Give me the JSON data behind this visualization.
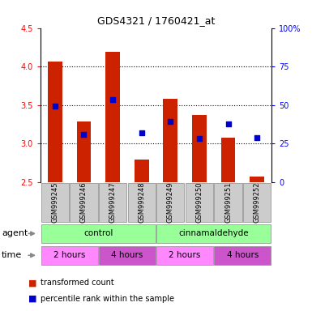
{
  "title": "GDS4321 / 1760421_at",
  "samples": [
    "GSM999245",
    "GSM999246",
    "GSM999247",
    "GSM999248",
    "GSM999249",
    "GSM999250",
    "GSM999251",
    "GSM999252"
  ],
  "bar_tops": [
    4.06,
    3.29,
    4.19,
    2.79,
    3.58,
    3.37,
    3.08,
    2.57
  ],
  "bar_bottom": 2.5,
  "blue_dots": [
    3.49,
    3.12,
    3.57,
    3.14,
    3.29,
    3.06,
    3.25,
    3.07
  ],
  "ylim": [
    2.5,
    4.5
  ],
  "yticks_left": [
    2.5,
    3.0,
    3.5,
    4.0,
    4.5
  ],
  "yticks_right": [
    0,
    25,
    50,
    75,
    100
  ],
  "yticks_right_vals": [
    2.5,
    3.0,
    3.5,
    4.0,
    4.5
  ],
  "bar_color": "#cc2200",
  "dot_color": "#0000cc",
  "agent_color": "#99ff99",
  "time_color_light": "#ff88ff",
  "time_color_dark": "#cc55cc",
  "sample_bg": "#cccccc",
  "legend_red": "transformed count",
  "legend_blue": "percentile rank within the sample",
  "title_fontsize": 9,
  "tick_fontsize": 7,
  "label_fontsize": 7.5,
  "sample_fontsize": 6,
  "row_fontsize": 7.5
}
